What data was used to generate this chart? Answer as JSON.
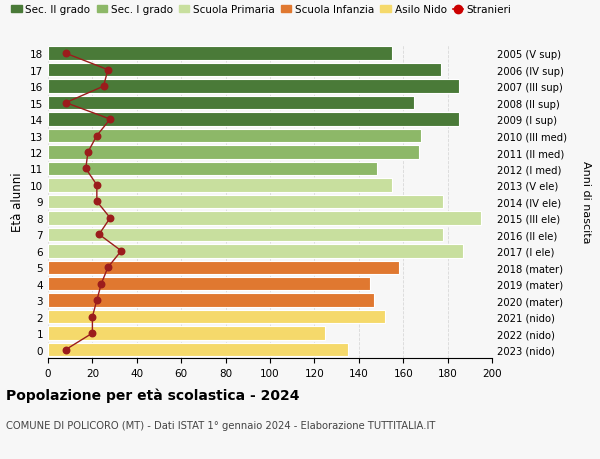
{
  "ages": [
    0,
    1,
    2,
    3,
    4,
    5,
    6,
    7,
    8,
    9,
    10,
    11,
    12,
    13,
    14,
    15,
    16,
    17,
    18
  ],
  "bar_values": [
    135,
    125,
    152,
    147,
    145,
    158,
    187,
    178,
    195,
    178,
    155,
    148,
    167,
    168,
    185,
    165,
    185,
    177,
    155
  ],
  "bar_colors": [
    "#f5d96b",
    "#f5d96b",
    "#f5d96b",
    "#e07830",
    "#e07830",
    "#e07830",
    "#c8df9e",
    "#c8df9e",
    "#c8df9e",
    "#c8df9e",
    "#c8df9e",
    "#8db868",
    "#8db868",
    "#8db868",
    "#4a7a38",
    "#4a7a38",
    "#4a7a38",
    "#4a7a38",
    "#4a7a38"
  ],
  "stranieri": [
    8,
    20,
    20,
    22,
    24,
    27,
    33,
    23,
    28,
    22,
    22,
    17,
    18,
    22,
    28,
    8,
    25,
    27,
    8
  ],
  "right_labels": [
    "2023 (nido)",
    "2022 (nido)",
    "2021 (nido)",
    "2020 (mater)",
    "2019 (mater)",
    "2018 (mater)",
    "2017 (I ele)",
    "2016 (II ele)",
    "2015 (III ele)",
    "2014 (IV ele)",
    "2013 (V ele)",
    "2012 (I med)",
    "2011 (II med)",
    "2010 (III med)",
    "2009 (I sup)",
    "2008 (II sup)",
    "2007 (III sup)",
    "2006 (IV sup)",
    "2005 (V sup)"
  ],
  "legend_labels": [
    "Sec. II grado",
    "Sec. I grado",
    "Scuola Primaria",
    "Scuola Infanzia",
    "Asilo Nido",
    "Stranieri"
  ],
  "legend_colors": [
    "#4a7a38",
    "#8db868",
    "#c8df9e",
    "#e07830",
    "#f5d96b",
    "#cc0000"
  ],
  "ylabel_left": "Età alunni",
  "ylabel_right": "Anni di nascita",
  "title": "Popolazione per età scolastica - 2024",
  "subtitle": "COMUNE DI POLICORO (MT) - Dati ISTAT 1° gennaio 2024 - Elaborazione TUTTITALIA.IT",
  "xlim": [
    0,
    200
  ],
  "background_color": "#f7f7f7",
  "grid_color": "#d8d8d8"
}
